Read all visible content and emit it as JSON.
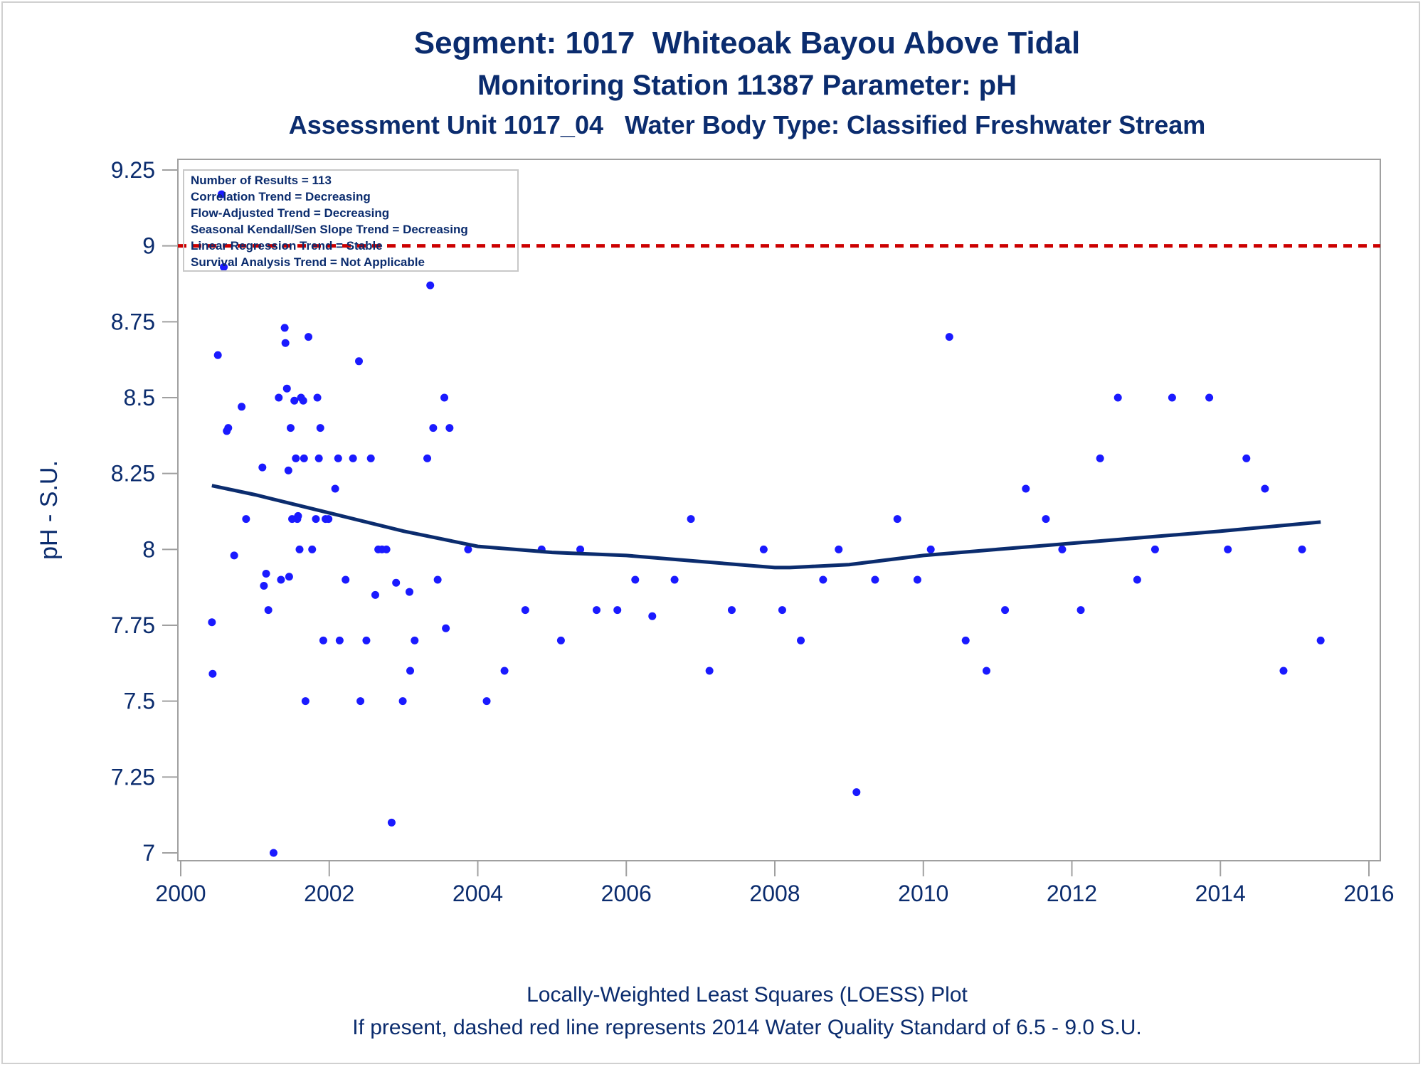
{
  "titles": {
    "line1": "Segment: 1017  Whiteoak Bayou Above Tidal",
    "line2": "Monitoring Station 11387 Parameter: pH",
    "line3": "Assessment Unit 1017_04   Water Body Type: Classified Freshwater Stream"
  },
  "footnotes": {
    "line1": "Locally-Weighted Least Squares (LOESS) Plot",
    "line2": "If present, dashed red line represents 2014 Water Quality Standard of 6.5 - 9.0 S.U."
  },
  "inset": {
    "lines": [
      "Number of Results = 113",
      "Correlation Trend = Decreasing",
      "Flow-Adjusted Trend = Decreasing",
      "Seasonal Kendall/Sen Slope Trend = Decreasing",
      "Linear Regression Trend = Stable",
      "Survival Analysis Trend = Not Applicable"
    ]
  },
  "colors": {
    "title": "#0b2c6e",
    "points": "#1a1aff",
    "loess": "#0b2c6e",
    "standard_line": "#cc0000",
    "frame": "#a0a0a0"
  },
  "chart_data": {
    "type": "scatter",
    "xlabel": "",
    "ylabel": "pH - S.U.",
    "xlim": [
      2000,
      2016
    ],
    "ylim": [
      7,
      9.25
    ],
    "xticks": [
      "2000",
      "2002",
      "2004",
      "2006",
      "2008",
      "2010",
      "2012",
      "2014",
      "2016"
    ],
    "yticks": [
      "7",
      "7.25",
      "7.5",
      "7.75",
      "8",
      "8.25",
      "8.5",
      "8.75",
      "9",
      "9.25"
    ],
    "grid": false,
    "reference_line": {
      "y": 9.0,
      "style": "dashed",
      "color": "#cc0000"
    },
    "series": [
      {
        "type": "scatter",
        "points": [
          [
            2000.42,
            7.76
          ],
          [
            2000.43,
            7.59
          ],
          [
            2000.5,
            8.64
          ],
          [
            2000.55,
            9.17
          ],
          [
            2000.58,
            8.93
          ],
          [
            2000.62,
            8.39
          ],
          [
            2000.64,
            8.4
          ],
          [
            2000.72,
            7.98
          ],
          [
            2000.82,
            8.47
          ],
          [
            2000.88,
            8.1
          ],
          [
            2001.1,
            8.27
          ],
          [
            2001.12,
            7.88
          ],
          [
            2001.15,
            7.92
          ],
          [
            2001.18,
            7.8
          ],
          [
            2001.25,
            7.0
          ],
          [
            2001.32,
            8.5
          ],
          [
            2001.35,
            7.9
          ],
          [
            2001.4,
            8.73
          ],
          [
            2001.41,
            8.68
          ],
          [
            2001.43,
            8.53
          ],
          [
            2001.45,
            8.26
          ],
          [
            2001.46,
            7.91
          ],
          [
            2001.48,
            8.4
          ],
          [
            2001.5,
            8.1
          ],
          [
            2001.53,
            8.49
          ],
          [
            2001.55,
            8.3
          ],
          [
            2001.57,
            8.1
          ],
          [
            2001.58,
            8.11
          ],
          [
            2001.6,
            8.0
          ],
          [
            2001.62,
            8.5
          ],
          [
            2001.65,
            8.49
          ],
          [
            2001.66,
            8.3
          ],
          [
            2001.68,
            7.5
          ],
          [
            2001.72,
            8.7
          ],
          [
            2001.77,
            8.0
          ],
          [
            2001.82,
            8.1
          ],
          [
            2001.84,
            8.5
          ],
          [
            2001.86,
            8.3
          ],
          [
            2001.88,
            8.4
          ],
          [
            2001.92,
            7.7
          ],
          [
            2001.95,
            8.1
          ],
          [
            2001.99,
            8.1
          ],
          [
            2002.08,
            8.2
          ],
          [
            2002.12,
            8.3
          ],
          [
            2002.14,
            7.7
          ],
          [
            2002.22,
            7.9
          ],
          [
            2002.32,
            8.3
          ],
          [
            2002.4,
            8.62
          ],
          [
            2002.42,
            7.5
          ],
          [
            2002.5,
            7.7
          ],
          [
            2002.56,
            8.3
          ],
          [
            2002.62,
            7.85
          ],
          [
            2002.66,
            8.0
          ],
          [
            2002.71,
            8.0
          ],
          [
            2002.77,
            8.0
          ],
          [
            2002.84,
            7.1
          ],
          [
            2002.9,
            7.89
          ],
          [
            2002.99,
            7.5
          ],
          [
            2003.08,
            7.86
          ],
          [
            2003.09,
            7.6
          ],
          [
            2003.15,
            7.7
          ],
          [
            2003.32,
            8.3
          ],
          [
            2003.36,
            8.87
          ],
          [
            2003.4,
            8.4
          ],
          [
            2003.46,
            7.9
          ],
          [
            2003.55,
            8.5
          ],
          [
            2003.57,
            7.74
          ],
          [
            2003.62,
            8.4
          ],
          [
            2003.87,
            8.0
          ],
          [
            2004.12,
            7.5
          ],
          [
            2004.36,
            7.6
          ],
          [
            2004.64,
            7.8
          ],
          [
            2004.86,
            8.0
          ],
          [
            2005.12,
            7.7
          ],
          [
            2005.38,
            8.0
          ],
          [
            2005.6,
            7.8
          ],
          [
            2005.88,
            7.8
          ],
          [
            2006.12,
            7.9
          ],
          [
            2006.35,
            7.78
          ],
          [
            2006.65,
            7.9
          ],
          [
            2006.87,
            8.1
          ],
          [
            2007.12,
            7.6
          ],
          [
            2007.42,
            7.8
          ],
          [
            2007.85,
            8.0
          ],
          [
            2008.1,
            7.8
          ],
          [
            2008.35,
            7.7
          ],
          [
            2008.65,
            7.9
          ],
          [
            2008.86,
            8.0
          ],
          [
            2009.1,
            7.2
          ],
          [
            2009.35,
            7.9
          ],
          [
            2009.65,
            8.1
          ],
          [
            2009.92,
            7.9
          ],
          [
            2010.1,
            8.0
          ],
          [
            2010.35,
            8.7
          ],
          [
            2010.57,
            7.7
          ],
          [
            2010.85,
            7.6
          ],
          [
            2011.1,
            7.8
          ],
          [
            2011.38,
            8.2
          ],
          [
            2011.65,
            8.1
          ],
          [
            2011.87,
            8.0
          ],
          [
            2012.12,
            7.8
          ],
          [
            2012.38,
            8.3
          ],
          [
            2012.62,
            8.5
          ],
          [
            2012.88,
            7.9
          ],
          [
            2013.12,
            8.0
          ],
          [
            2013.35,
            8.5
          ],
          [
            2013.85,
            8.5
          ],
          [
            2014.1,
            8.0
          ],
          [
            2014.35,
            8.3
          ],
          [
            2014.6,
            8.2
          ],
          [
            2014.85,
            7.6
          ],
          [
            2015.1,
            8.0
          ],
          [
            2015.35,
            7.7
          ]
        ]
      },
      {
        "type": "line",
        "style": "loess",
        "points": [
          [
            2000.42,
            8.21
          ],
          [
            2001.0,
            8.18
          ],
          [
            2002.0,
            8.12
          ],
          [
            2003.0,
            8.06
          ],
          [
            2004.0,
            8.01
          ],
          [
            2005.0,
            7.99
          ],
          [
            2006.0,
            7.98
          ],
          [
            2007.0,
            7.96
          ],
          [
            2008.0,
            7.94
          ],
          [
            2008.2,
            7.94
          ],
          [
            2009.0,
            7.95
          ],
          [
            2010.0,
            7.98
          ],
          [
            2011.0,
            8.0
          ],
          [
            2012.0,
            8.02
          ],
          [
            2013.0,
            8.04
          ],
          [
            2014.0,
            8.06
          ],
          [
            2015.35,
            8.09
          ]
        ]
      }
    ]
  }
}
